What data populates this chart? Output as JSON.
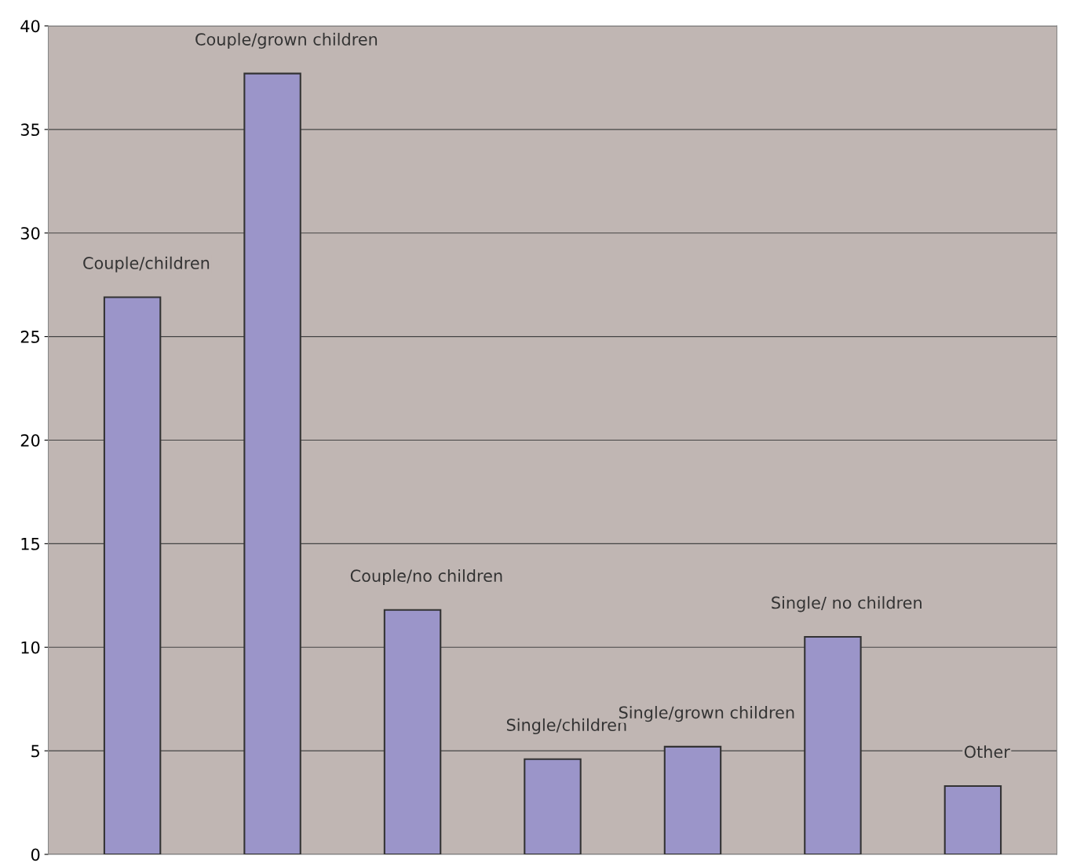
{
  "chart_data": {
    "type": "bar",
    "categories": [
      "Couple/children",
      "Couple/grown children",
      "Couple/no children",
      "Single/children",
      "Single/grown children",
      "Single/ no children",
      "Other"
    ],
    "values": [
      26.9,
      37.7,
      11.8,
      4.6,
      5.2,
      10.5,
      3.3
    ],
    "color": "#9b95c9",
    "ylim": [
      0,
      40
    ],
    "yticks": [
      0,
      5,
      10,
      15,
      20,
      25,
      30,
      35,
      40
    ],
    "grid": "y"
  }
}
